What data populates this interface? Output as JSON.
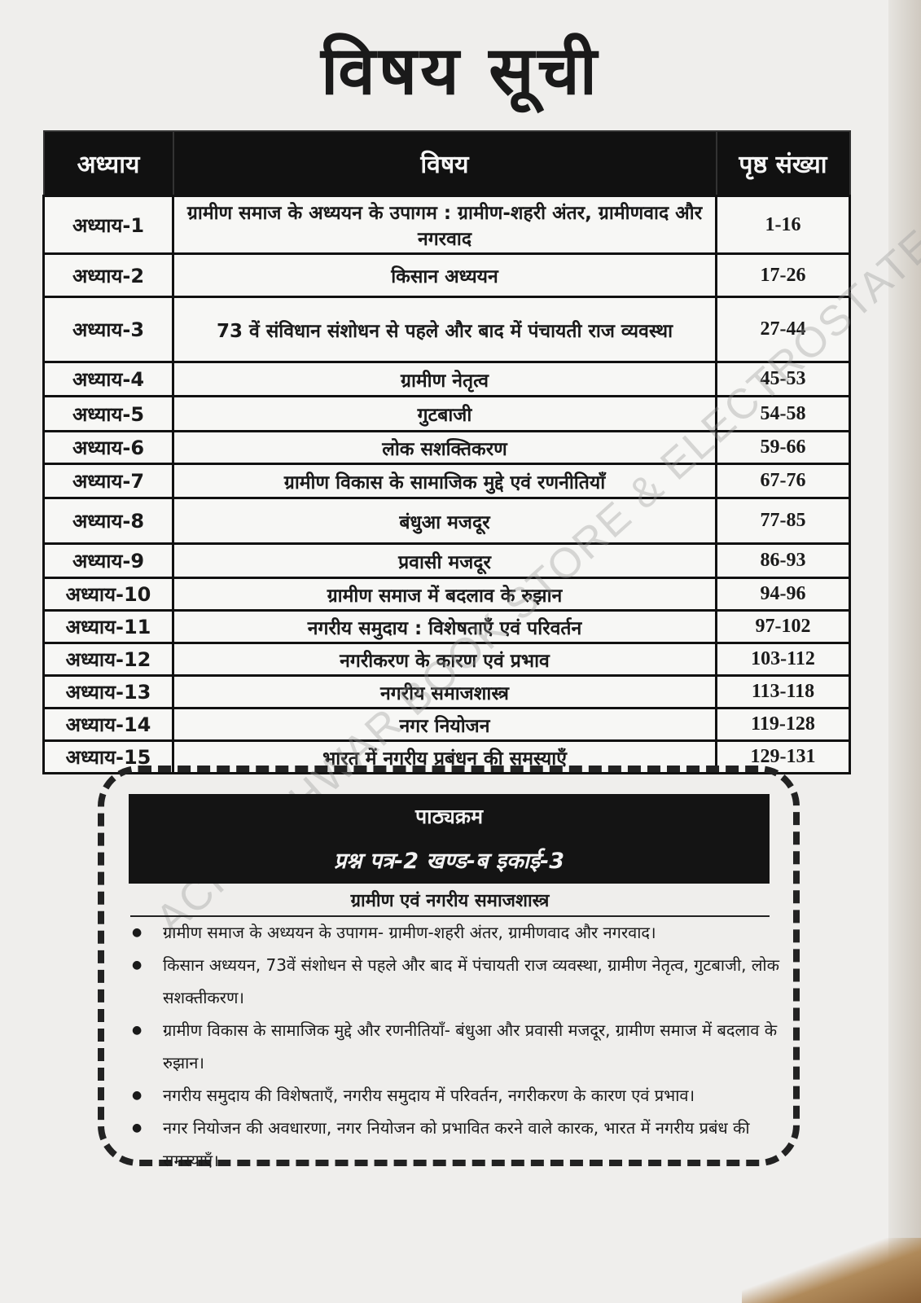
{
  "title": "विषय सूची",
  "table": {
    "headers": [
      "अध्याय",
      "विषय",
      "पृष्ठ संख्या"
    ],
    "rows": [
      {
        "chapter": "अध्याय-1",
        "topic": "ग्रामीण समाज के अध्ययन के उपागम : ग्रामीण-शहरी अंतर, ग्रामीणवाद और नगरवाद",
        "pages": "1-16"
      },
      {
        "chapter": "अध्याय-2",
        "topic": "किसान अध्ययन",
        "pages": "17-26"
      },
      {
        "chapter": "अध्याय-3",
        "topic": "73 वें संविधान संशोधन से पहले और बाद में पंचायती राज व्यवस्था",
        "pages": "27-44"
      },
      {
        "chapter": "अध्याय-4",
        "topic": "ग्रामीण नेतृत्व",
        "pages": "45-53"
      },
      {
        "chapter": "अध्याय-5",
        "topic": "गुटबाजी",
        "pages": "54-58"
      },
      {
        "chapter": "अध्याय-6",
        "topic": "लोक सशक्तिकरण",
        "pages": "59-66"
      },
      {
        "chapter": "अध्याय-7",
        "topic": "ग्रामीण विकास के सामाजिक मुद्दे एवं रणनीतियाँ",
        "pages": "67-76"
      },
      {
        "chapter": "अध्याय-8",
        "topic": "बंधुआ मजदूर",
        "pages": "77-85"
      },
      {
        "chapter": "अध्याय-9",
        "topic": "प्रवासी मजदूर",
        "pages": "86-93"
      },
      {
        "chapter": "अध्याय-10",
        "topic": "ग्रामीण समाज में बदलाव के रुझान",
        "pages": "94-96"
      },
      {
        "chapter": "अध्याय-11",
        "topic": "नगरीय समुदाय : विशेषताएँ एवं परिवर्तन",
        "pages": "97-102"
      },
      {
        "chapter": "अध्याय-12",
        "topic": "नगरीकरण के कारण एवं प्रभाव",
        "pages": "103-112"
      },
      {
        "chapter": "अध्याय-13",
        "topic": "नगरीय समाजशास्त्र",
        "pages": "113-118"
      },
      {
        "chapter": "अध्याय-14",
        "topic": "नगर नियोजन",
        "pages": "119-128"
      },
      {
        "chapter": "अध्याय-15",
        "topic": "भारत में नगरीय प्रबंधन की समस्याएँ",
        "pages": "129-131"
      }
    ]
  },
  "syllabus": {
    "heading": "पाठ्यक्रम",
    "subheading": "प्रश्न पत्र-2 खण्ड-ब इकाई-3",
    "section_title": "ग्रामीण एवं नगरीय समाजशास्त्र",
    "items": [
      "ग्रामीण समाज के अध्ययन के उपागम- ग्रामीण-शहरी अंतर, ग्रामीणवाद और नगरवाद।",
      "किसान अध्ययन, 73वें संशोधन से पहले और बाद में पंचायती राज व्यवस्था, ग्रामीण नेतृत्व, गुटबाजी, लोक सशक्तीकरण।",
      "ग्रामीण विकास के सामाजिक मुद्दे और रणनीतियाँ- बंधुआ और प्रवासी मजदूर, ग्रामीण समाज में बदलाव के रुझान।",
      "नगरीय समुदाय की विशेषताएँ, नगरीय समुदाय में परिवर्तन, नगरीकरण के कारण एवं प्रभाव।",
      "नगर नियोजन की अवधारणा, नगर नियोजन को प्रभावित करने वाले कारक, भारत में नगरीय प्रबंध की समस्याएँ।"
    ]
  },
  "watermark": "ACHLESHWAR BOOK STORE & ELECTROSTATE"
}
